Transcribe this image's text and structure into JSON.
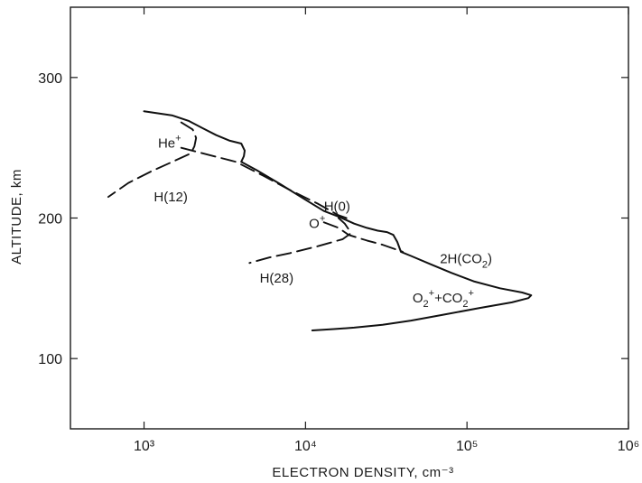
{
  "chart_data": {
    "type": "line",
    "title": "",
    "xlabel": "ELECTRON DENSITY, cm⁻³",
    "ylabel": "ALTITUDE, km",
    "x_scale": "log",
    "xlim": [
      350,
      1000000
    ],
    "ylim": [
      50,
      350
    ],
    "x_ticks": [
      {
        "value": 1000,
        "label": "10³"
      },
      {
        "value": 10000,
        "label": "10⁴"
      },
      {
        "value": 100000,
        "label": "10⁵"
      },
      {
        "value": 1000000,
        "label": "10⁶"
      }
    ],
    "y_ticks": [
      {
        "value": 100,
        "label": "100"
      },
      {
        "value": 200,
        "label": "200"
      },
      {
        "value": 300,
        "label": "300"
      }
    ],
    "grid": false,
    "series": [
      {
        "style": "solid",
        "points": [
          [
            1000,
            276
          ],
          [
            1500,
            273
          ],
          [
            1900,
            269
          ],
          [
            2300,
            264
          ],
          [
            2800,
            259
          ],
          [
            3400,
            255
          ],
          [
            4000,
            253
          ],
          [
            4200,
            248
          ],
          [
            4150,
            244
          ],
          [
            4000,
            240
          ],
          [
            5000,
            234
          ],
          [
            7000,
            224
          ],
          [
            10000,
            213
          ],
          [
            13000,
            205
          ],
          [
            16000,
            201
          ],
          [
            20000,
            196
          ],
          [
            24000,
            193
          ],
          [
            28000,
            191
          ],
          [
            32000,
            190
          ],
          [
            35000,
            188
          ],
          [
            37000,
            183
          ],
          [
            39000,
            176
          ],
          [
            45000,
            173
          ],
          [
            60000,
            167
          ],
          [
            80000,
            161
          ],
          [
            110000,
            155
          ],
          [
            160000,
            150
          ],
          [
            220000,
            147
          ],
          [
            250000,
            145
          ],
          [
            240000,
            143
          ],
          [
            190000,
            140
          ],
          [
            120000,
            136
          ],
          [
            70000,
            131
          ],
          [
            45000,
            127
          ],
          [
            30000,
            124
          ],
          [
            20000,
            122
          ],
          [
            15000,
            121
          ],
          [
            11000,
            120
          ]
        ]
      },
      {
        "style": "dashed",
        "points": [
          [
            1700,
            250
          ],
          [
            2500,
            245
          ],
          [
            3700,
            240
          ],
          [
            5500,
            230
          ],
          [
            8000,
            220
          ],
          [
            12000,
            210
          ],
          [
            16000,
            202
          ],
          [
            19000,
            199
          ]
        ]
      },
      {
        "style": "dashed",
        "points": [
          [
            1700,
            268
          ],
          [
            2000,
            263
          ],
          [
            2100,
            257
          ],
          [
            2050,
            251
          ],
          [
            1950,
            246
          ],
          [
            1500,
            240
          ],
          [
            1100,
            233
          ],
          [
            800,
            225
          ],
          [
            600,
            215
          ]
        ]
      },
      {
        "style": "dashed",
        "points": [
          [
            13000,
            197
          ],
          [
            16000,
            193
          ],
          [
            18500,
            188
          ],
          [
            24000,
            184
          ],
          [
            30000,
            181
          ],
          [
            40000,
            176
          ]
        ]
      },
      {
        "style": "dashed",
        "points": [
          [
            16000,
            200
          ],
          [
            17500,
            196
          ],
          [
            18500,
            192
          ],
          [
            19000,
            189
          ],
          [
            17000,
            185
          ],
          [
            12000,
            180
          ],
          [
            8000,
            175
          ],
          [
            6000,
            172
          ],
          [
            4500,
            168
          ]
        ]
      }
    ],
    "annotations": [
      {
        "base": "He",
        "sup": "+",
        "x": 1220,
        "y": 250
      },
      {
        "base": "H(12)",
        "sup": "",
        "x": 1150,
        "y": 212
      },
      {
        "base": "H(0)",
        "sup": "",
        "x": 13000,
        "y": 205
      },
      {
        "base": "O",
        "sup": "+",
        "x": 10500,
        "y": 193
      },
      {
        "base": "H(28)",
        "sup": "",
        "x": 5200,
        "y": 154
      },
      {
        "base": "2H(CO",
        "sub": "2",
        "tail": ")",
        "x": 68000,
        "y": 168
      },
      {
        "base": "O",
        "sub1": "2",
        "sup1": "+",
        "mid": "+CO",
        "sub2": "2",
        "sup2": "+",
        "x": 46000,
        "y": 140
      }
    ]
  }
}
